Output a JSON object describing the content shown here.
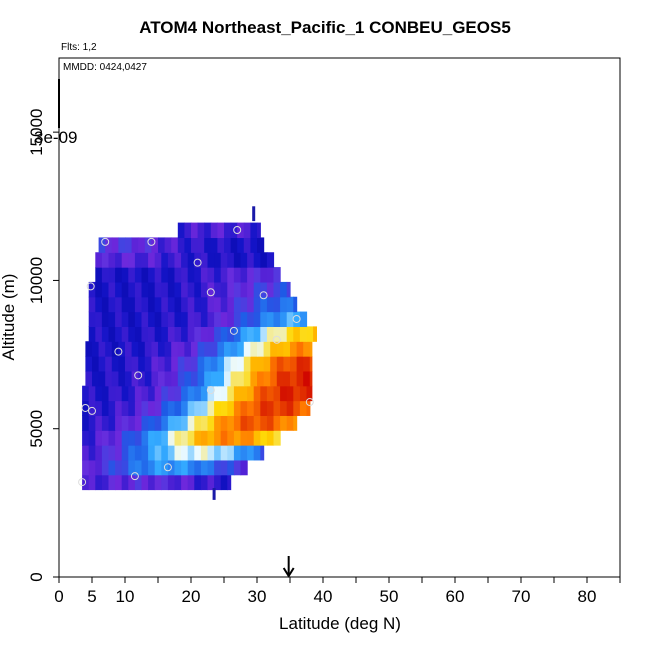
{
  "chart_data": {
    "type": "heatmap",
    "title": "ATOM4 Northeast_Pacific_1 CONBEU_GEOS5",
    "flights_label": "Flts: 1,2",
    "dates_label": "MMDD: 0424,0427",
    "xlabel": "Latitude (deg N)",
    "ylabel": "Altitude (m)",
    "xlim": [
      0,
      85
    ],
    "ylim": [
      0,
      17500
    ],
    "x_ticks": [
      0,
      5,
      10,
      20,
      30,
      40,
      50,
      60,
      70,
      80
    ],
    "x_minor_ticks": [
      15,
      25,
      35,
      45,
      55,
      65,
      75,
      85
    ],
    "y_ticks": [
      0,
      5000,
      10000,
      15000
    ],
    "colorbar_tick_label": "3e-09",
    "marker_arrow_latitude": 34.8,
    "grid": false,
    "colors": {
      "low": "#000099",
      "mid": "#33aaff",
      "high": "#ffcc00",
      "max": "#cc0000"
    },
    "rows": [
      {
        "alt": 3200,
        "start": 3.5,
        "end": 26.0,
        "peak": 13.0,
        "value": 0.22
      },
      {
        "alt": 3700,
        "start": 3.5,
        "end": 28.5,
        "peak": 17.0,
        "value": 0.42
      },
      {
        "alt": 4200,
        "start": 3.5,
        "end": 31.0,
        "peak": 21.0,
        "value": 0.55
      },
      {
        "alt": 4700,
        "start": 3.5,
        "end": 33.5,
        "peak": 26.0,
        "value": 0.8
      },
      {
        "alt": 5200,
        "start": 3.5,
        "end": 36.0,
        "peak": 30.0,
        "value": 0.88
      },
      {
        "alt": 5700,
        "start": 3.5,
        "end": 38.0,
        "peak": 33.0,
        "value": 0.92
      },
      {
        "alt": 6200,
        "start": 3.5,
        "end": 38.3,
        "peak": 35.5,
        "value": 0.95
      },
      {
        "alt": 6700,
        "start": 4.0,
        "end": 38.3,
        "peak": 37.0,
        "value": 0.95
      },
      {
        "alt": 7200,
        "start": 4.0,
        "end": 38.3,
        "peak": 37.5,
        "value": 0.92
      },
      {
        "alt": 7700,
        "start": 4.0,
        "end": 38.3,
        "peak": 38.0,
        "value": 0.8
      },
      {
        "alt": 8200,
        "start": 4.5,
        "end": 39.0,
        "peak": 38.5,
        "value": 0.7
      },
      {
        "alt": 8700,
        "start": 4.5,
        "end": 37.5,
        "peak": 37.0,
        "value": 0.45
      },
      {
        "alt": 9200,
        "start": 4.5,
        "end": 36.0,
        "peak": 35.5,
        "value": 0.35
      },
      {
        "alt": 9700,
        "start": 4.5,
        "end": 35.0,
        "peak": 34.0,
        "value": 0.28
      },
      {
        "alt": 10200,
        "start": 5.5,
        "end": 33.5,
        "peak": 32.0,
        "value": 0.22
      },
      {
        "alt": 10700,
        "start": 5.5,
        "end": 32.5,
        "peak": 9.0,
        "value": 0.2
      },
      {
        "alt": 11200,
        "start": 6.0,
        "end": 31.0,
        "peak": 8.0,
        "value": 0.25
      },
      {
        "alt": 11700,
        "start": 18.0,
        "end": 30.5,
        "peak": 24.0,
        "value": 0.18
      }
    ],
    "observations": [
      {
        "lat": 3.5,
        "alt": 3200
      },
      {
        "lat": 11.5,
        "alt": 3400
      },
      {
        "lat": 16.5,
        "alt": 3700
      },
      {
        "lat": 4.0,
        "alt": 5700
      },
      {
        "lat": 5.0,
        "alt": 5600
      },
      {
        "lat": 23.0,
        "alt": 6300
      },
      {
        "lat": 38.0,
        "alt": 5900
      },
      {
        "lat": 12.0,
        "alt": 6800
      },
      {
        "lat": 9.0,
        "alt": 7600
      },
      {
        "lat": 33.0,
        "alt": 8000
      },
      {
        "lat": 26.5,
        "alt": 8300
      },
      {
        "lat": 36.0,
        "alt": 8700
      },
      {
        "lat": 23.0,
        "alt": 9600
      },
      {
        "lat": 31.0,
        "alt": 9500
      },
      {
        "lat": 4.8,
        "alt": 9800
      },
      {
        "lat": 21.0,
        "alt": 10600
      },
      {
        "lat": 7.0,
        "alt": 11300
      },
      {
        "lat": 14.0,
        "alt": 11300
      },
      {
        "lat": 27.0,
        "alt": 11700
      }
    ]
  }
}
